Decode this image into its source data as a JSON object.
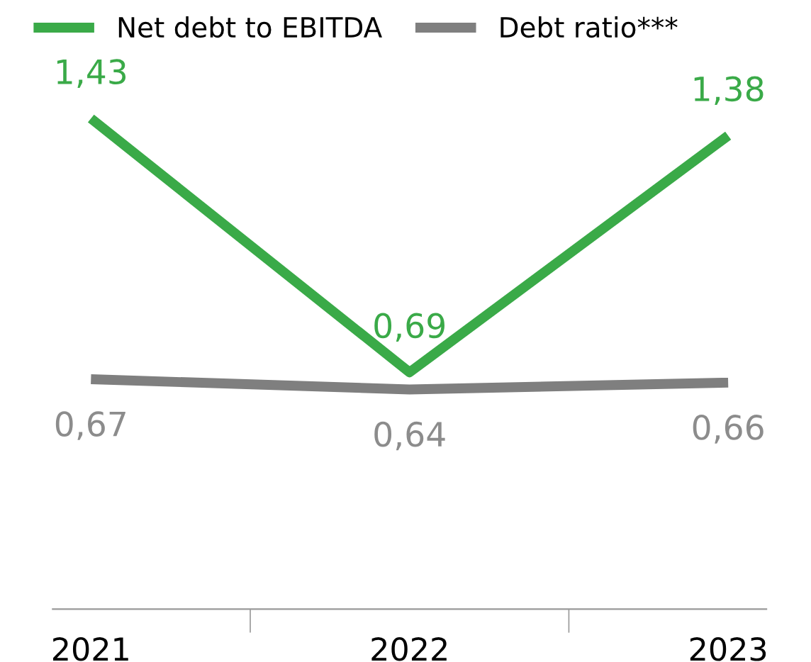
{
  "chart_data": {
    "type": "line",
    "categories": [
      "2021",
      "2022",
      "2023"
    ],
    "series": [
      {
        "name": "Net debt to EBITDA",
        "color": "#3aaa48",
        "values": [
          1.43,
          0.69,
          1.38
        ],
        "value_labels": [
          "1,43",
          "0,69",
          "1,38"
        ]
      },
      {
        "name": "Debt ratio***",
        "color": "#7f7f7f",
        "values": [
          0.67,
          0.64,
          0.66
        ],
        "value_labels": [
          "0,67",
          "0,64",
          "0,66"
        ]
      }
    ],
    "legend": "top left",
    "grid": false,
    "marker": "none",
    "line_style": "solid"
  }
}
